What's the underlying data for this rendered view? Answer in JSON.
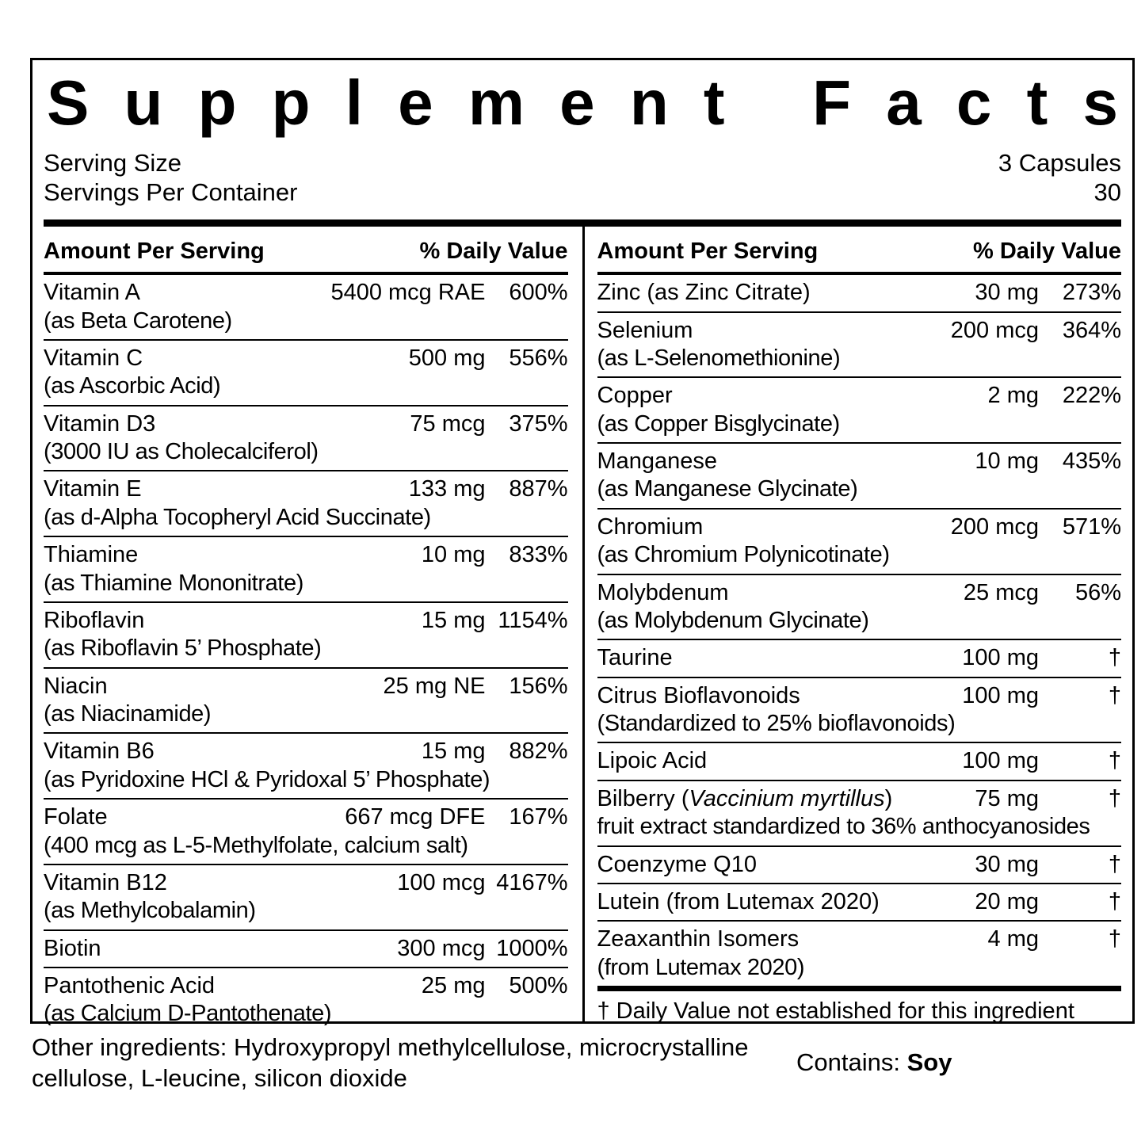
{
  "label": {
    "title": "Supplement Facts",
    "serving_size_label": "Serving Size",
    "serving_size_value": "3 Capsules",
    "servings_per_container_label": "Servings Per Container",
    "servings_per_container_value": "30",
    "column_header_amount": "Amount Per Serving",
    "column_header_dv": "% Daily Value",
    "footnote": "† Daily Value not established for this ingredient"
  },
  "columns": [
    {
      "rows": [
        {
          "name": "Vitamin A",
          "sub": "(as Beta Carotene)",
          "amount": "5400 mcg RAE",
          "dv": "600%"
        },
        {
          "name": "Vitamin C",
          "sub": "(as Ascorbic Acid)",
          "amount": "500 mg",
          "dv": "556%"
        },
        {
          "name": "Vitamin D3",
          "sub": "(3000 IU as Cholecalciferol)",
          "amount": "75 mcg",
          "dv": "375%"
        },
        {
          "name": "Vitamin E",
          "sub": "(as d-Alpha Tocopheryl Acid Succinate)",
          "amount": "133 mg",
          "dv": "887%"
        },
        {
          "name": "Thiamine",
          "sub": "(as Thiamine Mononitrate)",
          "amount": "10 mg",
          "dv": "833%"
        },
        {
          "name": "Riboflavin",
          "sub": "(as Riboflavin 5’ Phosphate)",
          "amount": "15 mg",
          "dv": "1154%"
        },
        {
          "name": "Niacin",
          "sub": "(as Niacinamide)",
          "amount": "25 mg NE",
          "dv": "156%"
        },
        {
          "name": "Vitamin B6",
          "sub": "(as Pyridoxine HCl & Pyridoxal 5’ Phosphate)",
          "amount": "15 mg",
          "dv": "882%"
        },
        {
          "name": "Folate",
          "sub": "(400 mcg as L-5-Methylfolate, calcium salt)",
          "amount": "667 mcg DFE",
          "dv": "167%"
        },
        {
          "name": "Vitamin B12",
          "sub": "(as Methylcobalamin)",
          "amount": "100 mcg",
          "dv": "4167%"
        },
        {
          "name": "Biotin",
          "amount": "300 mcg",
          "dv": "1000%"
        },
        {
          "name": "Pantothenic Acid",
          "sub": "(as Calcium D-Pantothenate)",
          "amount": "25 mg",
          "dv": "500%"
        }
      ]
    },
    {
      "rows": [
        {
          "name": "Zinc (as Zinc Citrate)",
          "amount": "30 mg",
          "dv": "273%"
        },
        {
          "name": "Selenium",
          "sub": "(as L-Selenomethionine)",
          "amount": "200 mcg",
          "dv": "364%"
        },
        {
          "name": "Copper",
          "sub": "(as Copper Bisglycinate)",
          "amount": "2 mg",
          "dv": "222%"
        },
        {
          "name": "Manganese",
          "sub": "(as Manganese Glycinate)",
          "amount": "10 mg",
          "dv": "435%"
        },
        {
          "name": "Chromium",
          "sub": "(as Chromium Polynicotinate)",
          "amount": "200 mcg",
          "dv": "571%"
        },
        {
          "name": "Molybdenum",
          "sub": "(as Molybdenum Glycinate)",
          "amount": "25 mcg",
          "dv": "56%"
        },
        {
          "name": "Taurine",
          "amount": "100 mg",
          "dv": "†"
        },
        {
          "name": "Citrus Bioflavonoids",
          "sub": "(Standardized to 25% bioflavonoids)",
          "amount": "100 mg",
          "dv": "†"
        },
        {
          "name": "Lipoic Acid",
          "amount": "100 mg",
          "dv": "†"
        },
        {
          "name_pre": "Bilberry (",
          "name_italic": "Vaccinium myrtillus",
          "name_post": ")",
          "sub": "fruit extract standardized to 36% anthocyanosides",
          "amount": "75 mg",
          "dv": "†"
        },
        {
          "name": "Coenzyme Q10",
          "amount": "30 mg",
          "dv": "†"
        },
        {
          "name": "Lutein (from Lutemax 2020)",
          "amount": "20 mg",
          "dv": "†"
        },
        {
          "name": "Zeaxanthin Isomers",
          "sub": "(from Lutemax 2020)",
          "amount": "4 mg",
          "dv": "†"
        }
      ]
    }
  ],
  "other_ingredients": "Other ingredients: Hydroxypropyl methylcellulose, microcrystalline cellulose, L-leucine, silicon dioxide",
  "contains_label": "Contains:",
  "contains_value": "Soy",
  "colors": {
    "text": "#000000",
    "background": "#ffffff"
  }
}
